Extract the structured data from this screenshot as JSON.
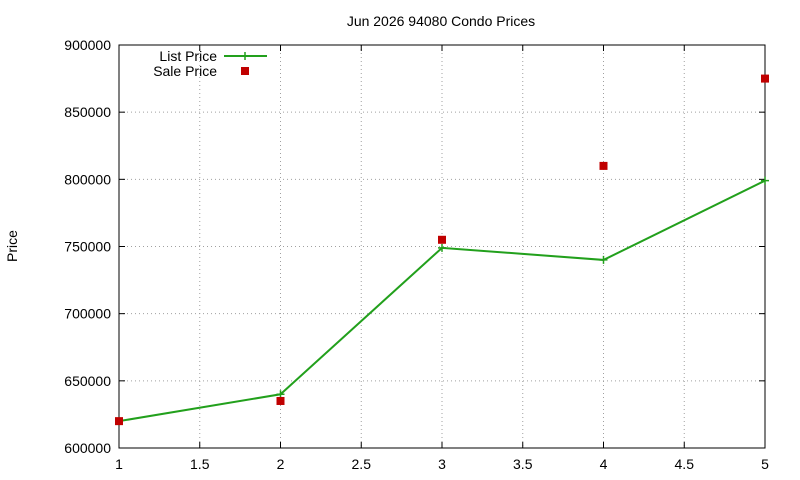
{
  "chart_data": {
    "type": "line",
    "title": "Jun 2026 94080 Condo Prices",
    "xlabel": "",
    "ylabel": "Price",
    "xlim": [
      1,
      5
    ],
    "ylim": [
      600000,
      900000
    ],
    "x_ticks": [
      "1",
      "1.5",
      "2",
      "2.5",
      "3",
      "3.5",
      "4",
      "4.5",
      "5"
    ],
    "y_ticks": [
      "600000",
      "650000",
      "700000",
      "750000",
      "800000",
      "850000",
      "900000"
    ],
    "grid": true,
    "legend_position": "top-left",
    "series": [
      {
        "name": "List Price",
        "style": "line with plus markers",
        "color": "#22a01c",
        "x": [
          1,
          2,
          3,
          4,
          5
        ],
        "y": [
          620000,
          640000,
          749000,
          740000,
          799000
        ]
      },
      {
        "name": "Sale Price",
        "style": "square markers",
        "color": "#c00000",
        "x": [
          1,
          2,
          3,
          4,
          5
        ],
        "y": [
          620000,
          635000,
          755000,
          810000,
          875000
        ]
      }
    ]
  }
}
